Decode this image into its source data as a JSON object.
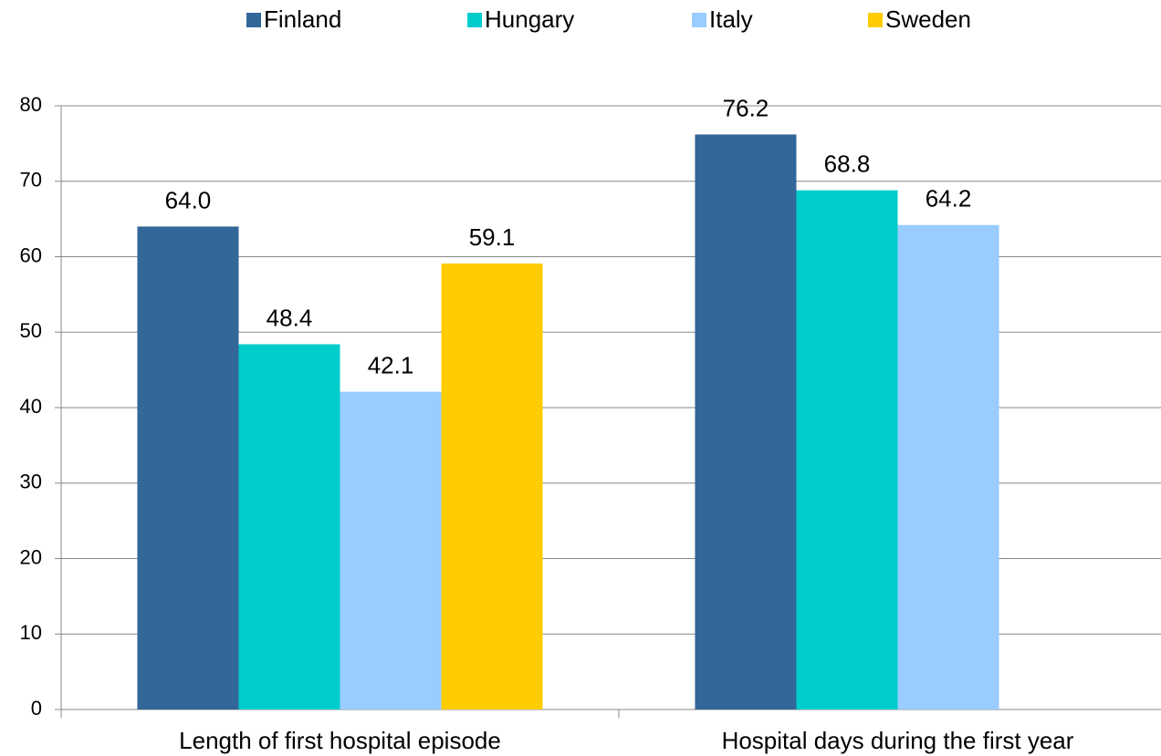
{
  "chart_data": {
    "type": "bar",
    "categories": [
      "Length of first hospital episode",
      "Hospital days during the first year"
    ],
    "series": [
      {
        "name": "Finland",
        "color": "#336699",
        "values": [
          64.0,
          76.2
        ],
        "value_labels": [
          "64.0",
          "76.2"
        ]
      },
      {
        "name": "Hungary",
        "color": "#00CCCC",
        "values": [
          48.4,
          68.8
        ],
        "value_labels": [
          "48.4",
          "68.8"
        ]
      },
      {
        "name": "Italy",
        "color": "#99CCFF",
        "values": [
          42.1,
          64.2
        ],
        "value_labels": [
          "42.1",
          "64.2"
        ]
      },
      {
        "name": "Sweden",
        "color": "#FFCC00",
        "values": [
          59.1,
          null
        ],
        "value_labels": [
          "59.1",
          null
        ]
      }
    ],
    "ylim": [
      0,
      80
    ],
    "yticks": [
      0,
      10,
      20,
      30,
      40,
      50,
      60,
      70,
      80
    ],
    "grid": true,
    "legend": "top"
  }
}
